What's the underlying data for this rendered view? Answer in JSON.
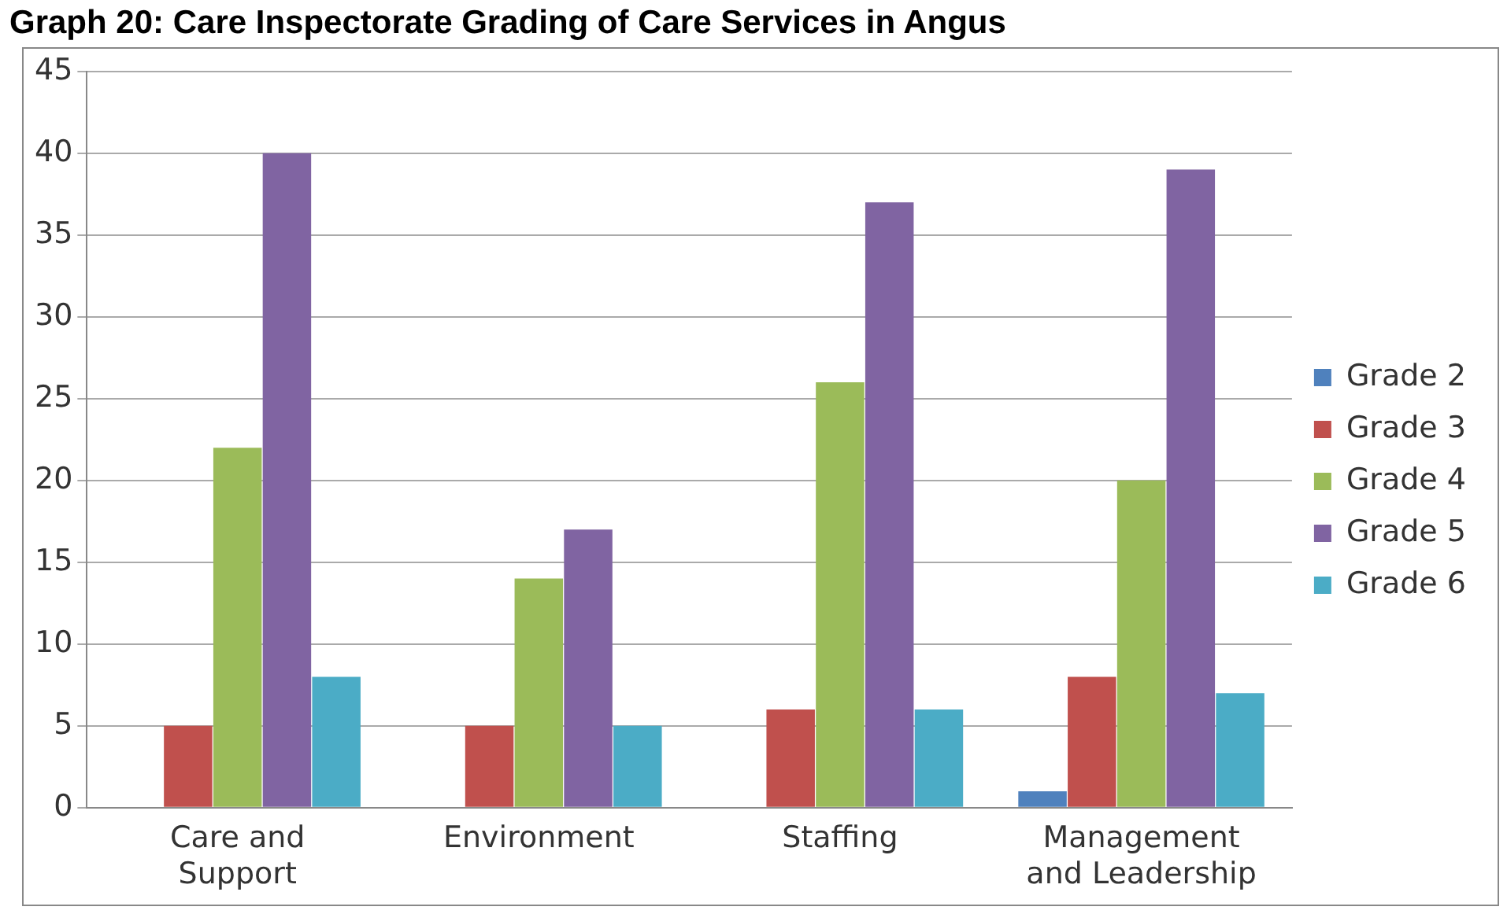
{
  "chart_data": {
    "type": "bar",
    "title": "Graph 20: Care Inspectorate Grading of Care Services in Angus",
    "categories": [
      "Care and Support",
      "Environment",
      "Staffing",
      "Management and Leadership"
    ],
    "series": [
      {
        "name": "Grade 2",
        "color": "#4f81bd",
        "values": [
          0,
          0,
          0,
          1
        ]
      },
      {
        "name": "Grade 3",
        "color": "#c0504d",
        "values": [
          5,
          5,
          6,
          8
        ]
      },
      {
        "name": "Grade 4",
        "color": "#9bbb59",
        "values": [
          22,
          14,
          26,
          20
        ]
      },
      {
        "name": "Grade 5",
        "color": "#8064a2",
        "values": [
          40,
          17,
          37,
          39
        ]
      },
      {
        "name": "Grade 6",
        "color": "#4bacc6",
        "values": [
          8,
          5,
          6,
          7
        ]
      }
    ],
    "ylim": [
      0,
      45
    ],
    "yticks": [
      0,
      5,
      10,
      15,
      20,
      25,
      30,
      35,
      40,
      45
    ],
    "grid": "y",
    "legend": "right"
  }
}
